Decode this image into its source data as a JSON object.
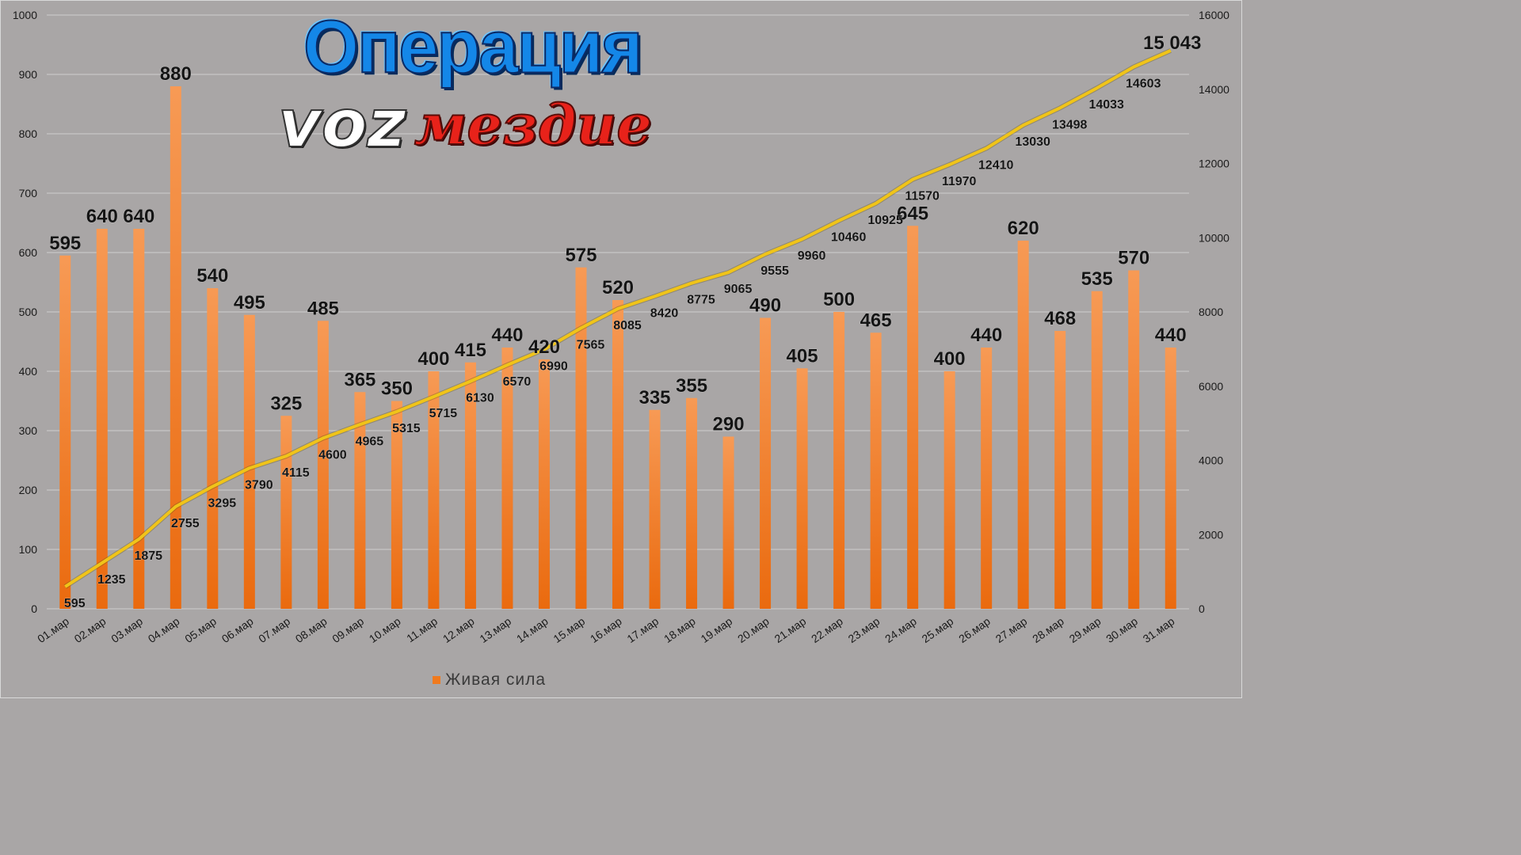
{
  "logo": {
    "line1": "Операция",
    "line2a": "voz",
    "line2b": "мездие"
  },
  "legend": {
    "label": "Живая сила"
  },
  "colors": {
    "bar": "#f07a1e",
    "line": "#f0c419",
    "background": "#a9a6a6",
    "grid": "#cfcfcf"
  },
  "chart_data": {
    "type": "bar",
    "title": "",
    "categories": [
      "01.мар",
      "02.мар",
      "03.мар",
      "04.мар",
      "05.мар",
      "06.мар",
      "07.мар",
      "08.мар",
      "09.мар",
      "10.мар",
      "11.мар",
      "12.мар",
      "13.мар",
      "14.мар",
      "15.мар",
      "16.мар",
      "17.мар",
      "18.мар",
      "19.мар",
      "20.мар",
      "21.мар",
      "22.мар",
      "23.мар",
      "24.мар",
      "25.мар",
      "26.мар",
      "27.мар",
      "28.мар",
      "29.мар",
      "30.мар",
      "31.мар"
    ],
    "series": [
      {
        "name": "Живая сила",
        "type": "bar",
        "axis": "left",
        "values": [
          595,
          640,
          640,
          880,
          540,
          495,
          325,
          485,
          365,
          350,
          400,
          415,
          440,
          420,
          575,
          520,
          335,
          355,
          290,
          490,
          405,
          500,
          465,
          645,
          400,
          440,
          620,
          468,
          535,
          570,
          440
        ]
      },
      {
        "type": "line",
        "axis": "right",
        "values": [
          595,
          1235,
          1875,
          2755,
          3295,
          3790,
          4115,
          4600,
          4965,
          5315,
          5715,
          6130,
          6570,
          6990,
          7565,
          8085,
          8420,
          8775,
          9065,
          9555,
          9960,
          10460,
          10925,
          11570,
          11970,
          12410,
          13030,
          13498,
          14033,
          14603,
          15043
        ],
        "labels": [
          "595",
          "1235",
          "1875",
          "2755",
          "3295",
          "3790",
          "4115",
          "4600",
          "4965",
          "5315",
          "5715",
          "6130",
          "6570",
          "6990",
          "7565",
          "8085",
          "8420",
          "8775",
          "9065",
          "9555",
          "9960",
          "10460",
          "10925",
          "11570",
          "11970",
          "12410",
          "13030",
          "13498",
          "14033",
          "14603",
          "15 043"
        ]
      }
    ],
    "ylim_left": [
      0,
      1000
    ],
    "yticks_left": [
      "0",
      "100",
      "200",
      "300",
      "400",
      "500",
      "600",
      "700",
      "800",
      "900",
      "1000"
    ],
    "ylim_right": [
      0,
      16000
    ],
    "yticks_right": [
      "0",
      "2000",
      "4000",
      "6000",
      "8000",
      "10000",
      "12000",
      "14000",
      "16000"
    ],
    "grid": true,
    "legend_position": "bottom"
  }
}
